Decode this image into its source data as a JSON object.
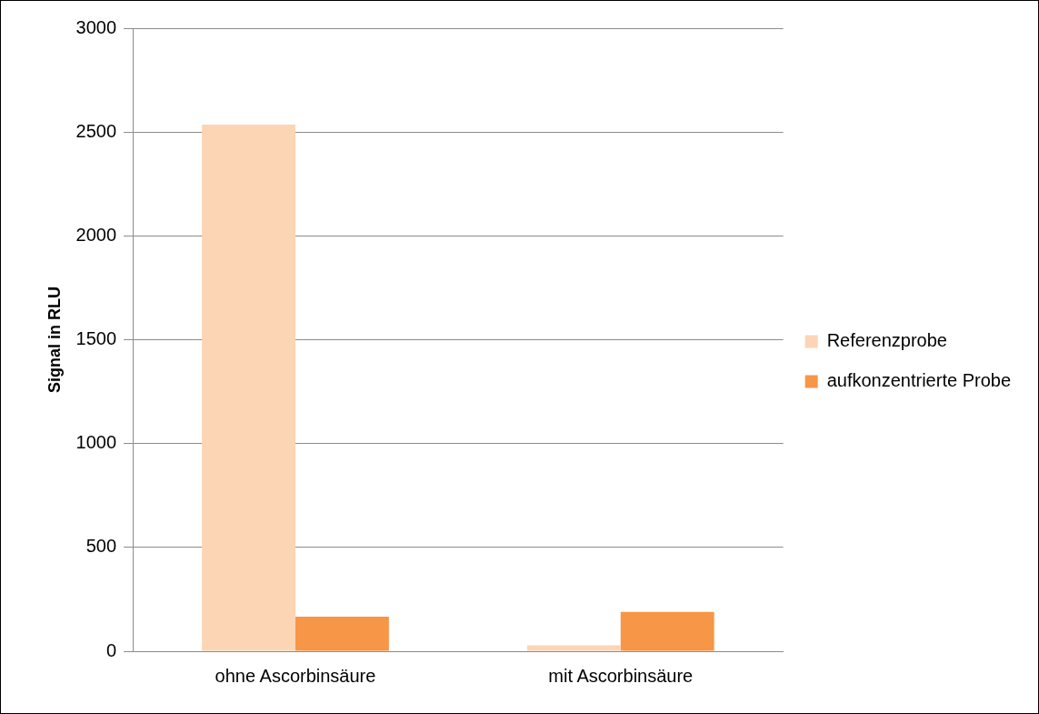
{
  "chart_data": {
    "type": "bar",
    "ylabel": "Signal in RLU",
    "categories": [
      "ohne Ascorbinsäure",
      "mit Ascorbinsäure"
    ],
    "series": [
      {
        "name": "Referenzprobe",
        "color": "#fcd5b5",
        "values": [
          2536,
          29
        ]
      },
      {
        "name": "aufkonzentrierte Probe",
        "color": "#f79646",
        "values": [
          166,
          189
        ]
      }
    ],
    "ylim": [
      0,
      3000
    ],
    "yticks": [
      0,
      500,
      1000,
      1500,
      2000,
      2500,
      3000
    ],
    "grid": "y",
    "legend": "right"
  }
}
